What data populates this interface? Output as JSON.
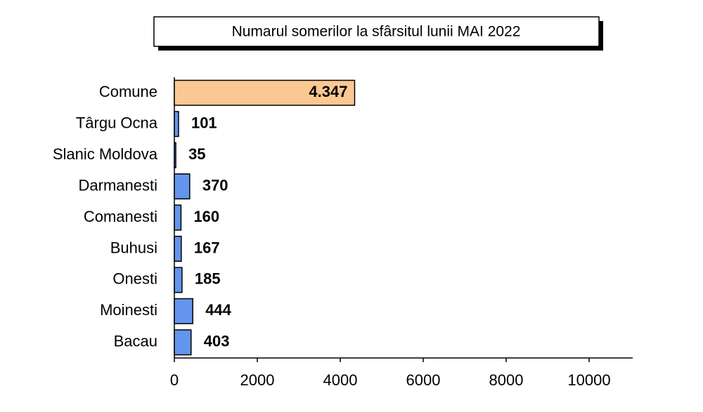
{
  "chart_data": {
    "type": "hbar",
    "title": "Numarul somerilor la sfârsitul lunii MAI 2022",
    "categories": [
      "Comune",
      "Târgu Ocna",
      "Slanic Moldova",
      "Darmanesti",
      "Comanesti",
      "Buhusi",
      "Onesti",
      "Moinesti",
      "Bacau"
    ],
    "values": [
      4347,
      101,
      35,
      370,
      160,
      167,
      185,
      444,
      403
    ],
    "value_labels": [
      "4.347",
      "101",
      "35",
      "370",
      "160",
      "167",
      "185",
      "444",
      "403"
    ],
    "colors": [
      "#fbc894",
      "#6495ed",
      "#6495ed",
      "#6495ed",
      "#6495ed",
      "#6495ed",
      "#6495ed",
      "#6495ed",
      "#6495ed"
    ],
    "xlim": [
      0,
      11000
    ],
    "xticks": [
      0,
      2000,
      4000,
      6000,
      8000,
      10000
    ]
  }
}
